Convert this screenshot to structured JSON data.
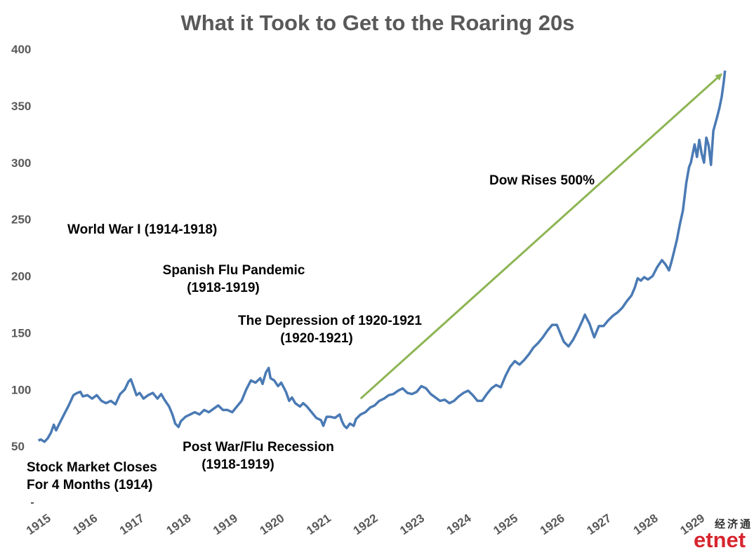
{
  "chart_data": {
    "type": "line",
    "title": "What it Took to Get to the Roaring 20s",
    "xlabel": "",
    "ylabel": "",
    "x_ticks": [
      "1915",
      "1916",
      "1917",
      "1918",
      "1919",
      "1920",
      "1921",
      "1922",
      "1923",
      "1924",
      "1925",
      "1926",
      "1927",
      "1928",
      "1929"
    ],
    "y_ticks": [
      "400",
      "350",
      "300",
      "250",
      "200",
      "150",
      "100",
      "50"
    ],
    "ylim": [
      0,
      400
    ],
    "xlim": [
      1914.85,
      1929.85
    ],
    "grid": false,
    "line_color": "#4a7ab4",
    "arrow_color": "#8db553",
    "series": [
      {
        "name": "",
        "points": [
          [
            1914.95,
            55
          ],
          [
            1915.0,
            56
          ],
          [
            1915.08,
            54
          ],
          [
            1915.15,
            57
          ],
          [
            1915.22,
            62
          ],
          [
            1915.28,
            69
          ],
          [
            1915.33,
            64
          ],
          [
            1915.4,
            70
          ],
          [
            1915.5,
            78
          ],
          [
            1915.6,
            86
          ],
          [
            1915.7,
            95
          ],
          [
            1915.78,
            97
          ],
          [
            1915.85,
            98
          ],
          [
            1915.9,
            94
          ],
          [
            1916.0,
            95
          ],
          [
            1916.1,
            92
          ],
          [
            1916.2,
            95
          ],
          [
            1916.3,
            90
          ],
          [
            1916.4,
            88
          ],
          [
            1916.5,
            90
          ],
          [
            1916.6,
            87
          ],
          [
            1916.7,
            96
          ],
          [
            1916.8,
            100
          ],
          [
            1916.88,
            107
          ],
          [
            1916.93,
            109
          ],
          [
            1917.0,
            101
          ],
          [
            1917.05,
            95
          ],
          [
            1917.12,
            97
          ],
          [
            1917.2,
            92
          ],
          [
            1917.3,
            95
          ],
          [
            1917.4,
            97
          ],
          [
            1917.5,
            92
          ],
          [
            1917.58,
            96
          ],
          [
            1917.65,
            91
          ],
          [
            1917.75,
            85
          ],
          [
            1917.82,
            78
          ],
          [
            1917.88,
            70
          ],
          [
            1917.95,
            67
          ],
          [
            1918.0,
            72
          ],
          [
            1918.1,
            76
          ],
          [
            1918.2,
            78
          ],
          [
            1918.3,
            80
          ],
          [
            1918.4,
            78
          ],
          [
            1918.5,
            82
          ],
          [
            1918.6,
            80
          ],
          [
            1918.7,
            83
          ],
          [
            1918.8,
            86
          ],
          [
            1918.9,
            82
          ],
          [
            1919.0,
            82
          ],
          [
            1919.1,
            80
          ],
          [
            1919.2,
            85
          ],
          [
            1919.3,
            90
          ],
          [
            1919.4,
            100
          ],
          [
            1919.5,
            108
          ],
          [
            1919.6,
            106
          ],
          [
            1919.7,
            110
          ],
          [
            1919.75,
            105
          ],
          [
            1919.82,
            115
          ],
          [
            1919.88,
            119
          ],
          [
            1919.92,
            110
          ],
          [
            1920.0,
            108
          ],
          [
            1920.08,
            103
          ],
          [
            1920.15,
            106
          ],
          [
            1920.25,
            98
          ],
          [
            1920.32,
            90
          ],
          [
            1920.38,
            93
          ],
          [
            1920.45,
            88
          ],
          [
            1920.55,
            85
          ],
          [
            1920.62,
            88
          ],
          [
            1920.7,
            85
          ],
          [
            1920.8,
            80
          ],
          [
            1920.9,
            75
          ],
          [
            1921.0,
            73
          ],
          [
            1921.05,
            68
          ],
          [
            1921.12,
            76
          ],
          [
            1921.2,
            76
          ],
          [
            1921.3,
            75
          ],
          [
            1921.4,
            78
          ],
          [
            1921.45,
            72
          ],
          [
            1921.5,
            68
          ],
          [
            1921.55,
            66
          ],
          [
            1921.62,
            70
          ],
          [
            1921.7,
            68
          ],
          [
            1921.75,
            74
          ],
          [
            1921.85,
            78
          ],
          [
            1921.95,
            80
          ],
          [
            1922.05,
            84
          ],
          [
            1922.15,
            86
          ],
          [
            1922.25,
            90
          ],
          [
            1922.35,
            92
          ],
          [
            1922.45,
            95
          ],
          [
            1922.55,
            96
          ],
          [
            1922.65,
            99
          ],
          [
            1922.75,
            101
          ],
          [
            1922.85,
            97
          ],
          [
            1922.95,
            96
          ],
          [
            1923.05,
            98
          ],
          [
            1923.15,
            103
          ],
          [
            1923.25,
            101
          ],
          [
            1923.35,
            96
          ],
          [
            1923.45,
            93
          ],
          [
            1923.55,
            90
          ],
          [
            1923.65,
            91
          ],
          [
            1923.75,
            88
          ],
          [
            1923.85,
            90
          ],
          [
            1923.95,
            94
          ],
          [
            1924.05,
            97
          ],
          [
            1924.15,
            99
          ],
          [
            1924.25,
            95
          ],
          [
            1924.35,
            90
          ],
          [
            1924.45,
            90
          ],
          [
            1924.55,
            96
          ],
          [
            1924.65,
            101
          ],
          [
            1924.75,
            104
          ],
          [
            1924.85,
            102
          ],
          [
            1924.95,
            112
          ],
          [
            1925.05,
            120
          ],
          [
            1925.15,
            125
          ],
          [
            1925.25,
            122
          ],
          [
            1925.35,
            126
          ],
          [
            1925.45,
            131
          ],
          [
            1925.55,
            137
          ],
          [
            1925.65,
            141
          ],
          [
            1925.75,
            146
          ],
          [
            1925.85,
            152
          ],
          [
            1925.95,
            157
          ],
          [
            1926.05,
            157
          ],
          [
            1926.12,
            150
          ],
          [
            1926.2,
            142
          ],
          [
            1926.3,
            138
          ],
          [
            1926.4,
            144
          ],
          [
            1926.5,
            152
          ],
          [
            1926.6,
            161
          ],
          [
            1926.65,
            166
          ],
          [
            1926.75,
            158
          ],
          [
            1926.85,
            146
          ],
          [
            1926.95,
            156
          ],
          [
            1927.05,
            156
          ],
          [
            1927.15,
            161
          ],
          [
            1927.25,
            165
          ],
          [
            1927.35,
            168
          ],
          [
            1927.45,
            172
          ],
          [
            1927.55,
            178
          ],
          [
            1927.65,
            183
          ],
          [
            1927.72,
            190
          ],
          [
            1927.78,
            198
          ],
          [
            1927.85,
            196
          ],
          [
            1927.92,
            199
          ],
          [
            1928.0,
            197
          ],
          [
            1928.1,
            200
          ],
          [
            1928.2,
            208
          ],
          [
            1928.3,
            214
          ],
          [
            1928.38,
            210
          ],
          [
            1928.45,
            205
          ],
          [
            1928.5,
            212
          ],
          [
            1928.55,
            220
          ],
          [
            1928.62,
            232
          ],
          [
            1928.68,
            245
          ],
          [
            1928.75,
            258
          ],
          [
            1928.82,
            282
          ],
          [
            1928.88,
            296
          ],
          [
            1928.92,
            300
          ],
          [
            1929.0,
            316
          ],
          [
            1929.05,
            305
          ],
          [
            1929.1,
            320
          ],
          [
            1929.15,
            308
          ],
          [
            1929.2,
            300
          ],
          [
            1929.25,
            322
          ],
          [
            1929.3,
            315
          ],
          [
            1929.35,
            298
          ],
          [
            1929.4,
            328
          ],
          [
            1929.48,
            340
          ],
          [
            1929.53,
            348
          ],
          [
            1929.58,
            358
          ],
          [
            1929.62,
            370
          ],
          [
            1929.65,
            381
          ]
        ]
      }
    ],
    "annotations": {
      "world_war": "World War I (1914-1918)",
      "spanish_flu_1": "Spanish Flu Pandemic",
      "spanish_flu_2": "(1918-1919)",
      "depression_1": "The Depression of 1920-1921",
      "depression_2": "(1920-1921)",
      "dow_rises": "Dow Rises 500%",
      "post_war_1": "Post War/Flu Recession",
      "post_war_2": "(1918-1919)",
      "market_closes_1": "Stock Market Closes",
      "market_closes_2": "For 4 Months (1914)"
    },
    "arrow": {
      "from": [
        1921.85,
        92
      ],
      "to": [
        1929.55,
        377
      ]
    }
  },
  "logo": {
    "cn": "经济通",
    "en": "etnet"
  }
}
